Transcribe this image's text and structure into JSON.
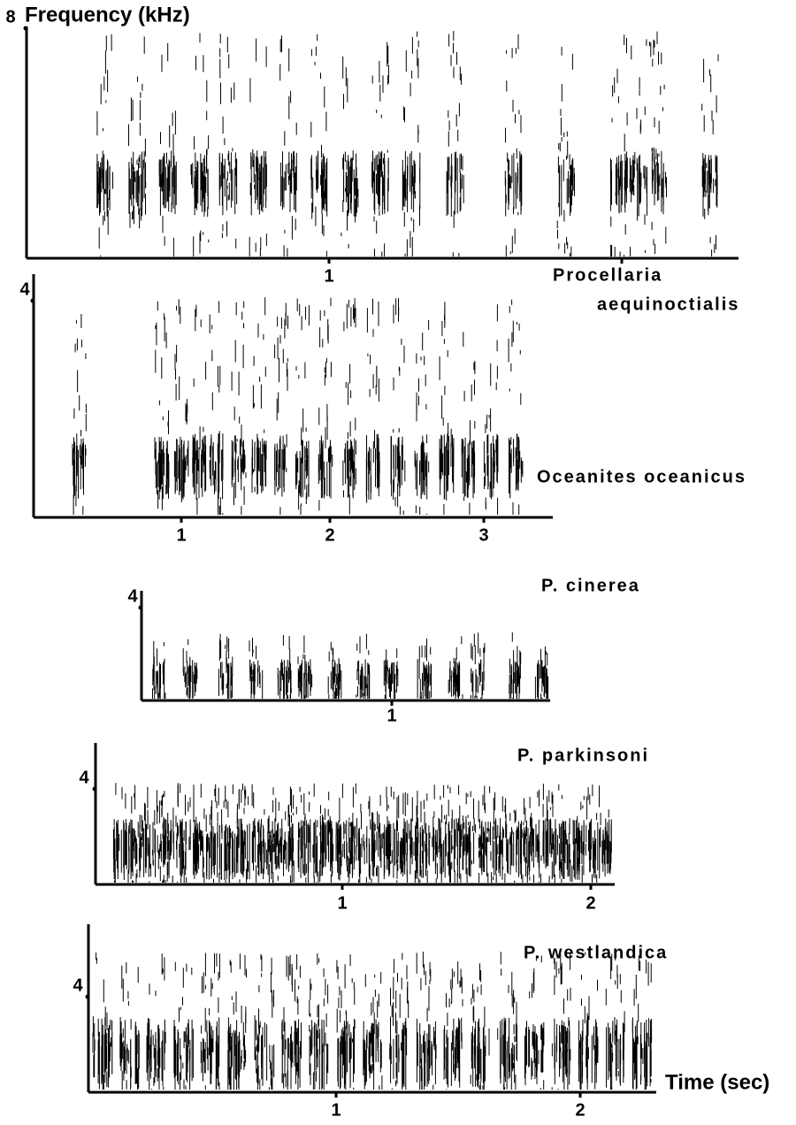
{
  "title": "Frequency (kHz)",
  "time_label": "Time (sec)",
  "panels": [
    {
      "species": [
        "Procellaria",
        "aequinoctialis"
      ],
      "y_tick": "8",
      "x_ticks": [
        "1"
      ]
    },
    {
      "species": [
        "Oceanites oceanicus"
      ],
      "y_tick": "4",
      "x_ticks": [
        "1",
        "2",
        "3"
      ]
    },
    {
      "species": [
        "P. cinerea"
      ],
      "y_tick": "4",
      "x_ticks": [
        "1"
      ]
    },
    {
      "species": [
        "P. parkinsoni"
      ],
      "y_tick": "4",
      "x_ticks": [
        "1",
        "2"
      ]
    },
    {
      "species": [
        "P. westlandica"
      ],
      "y_tick": "4",
      "x_ticks": [
        "1",
        "2"
      ]
    }
  ]
}
